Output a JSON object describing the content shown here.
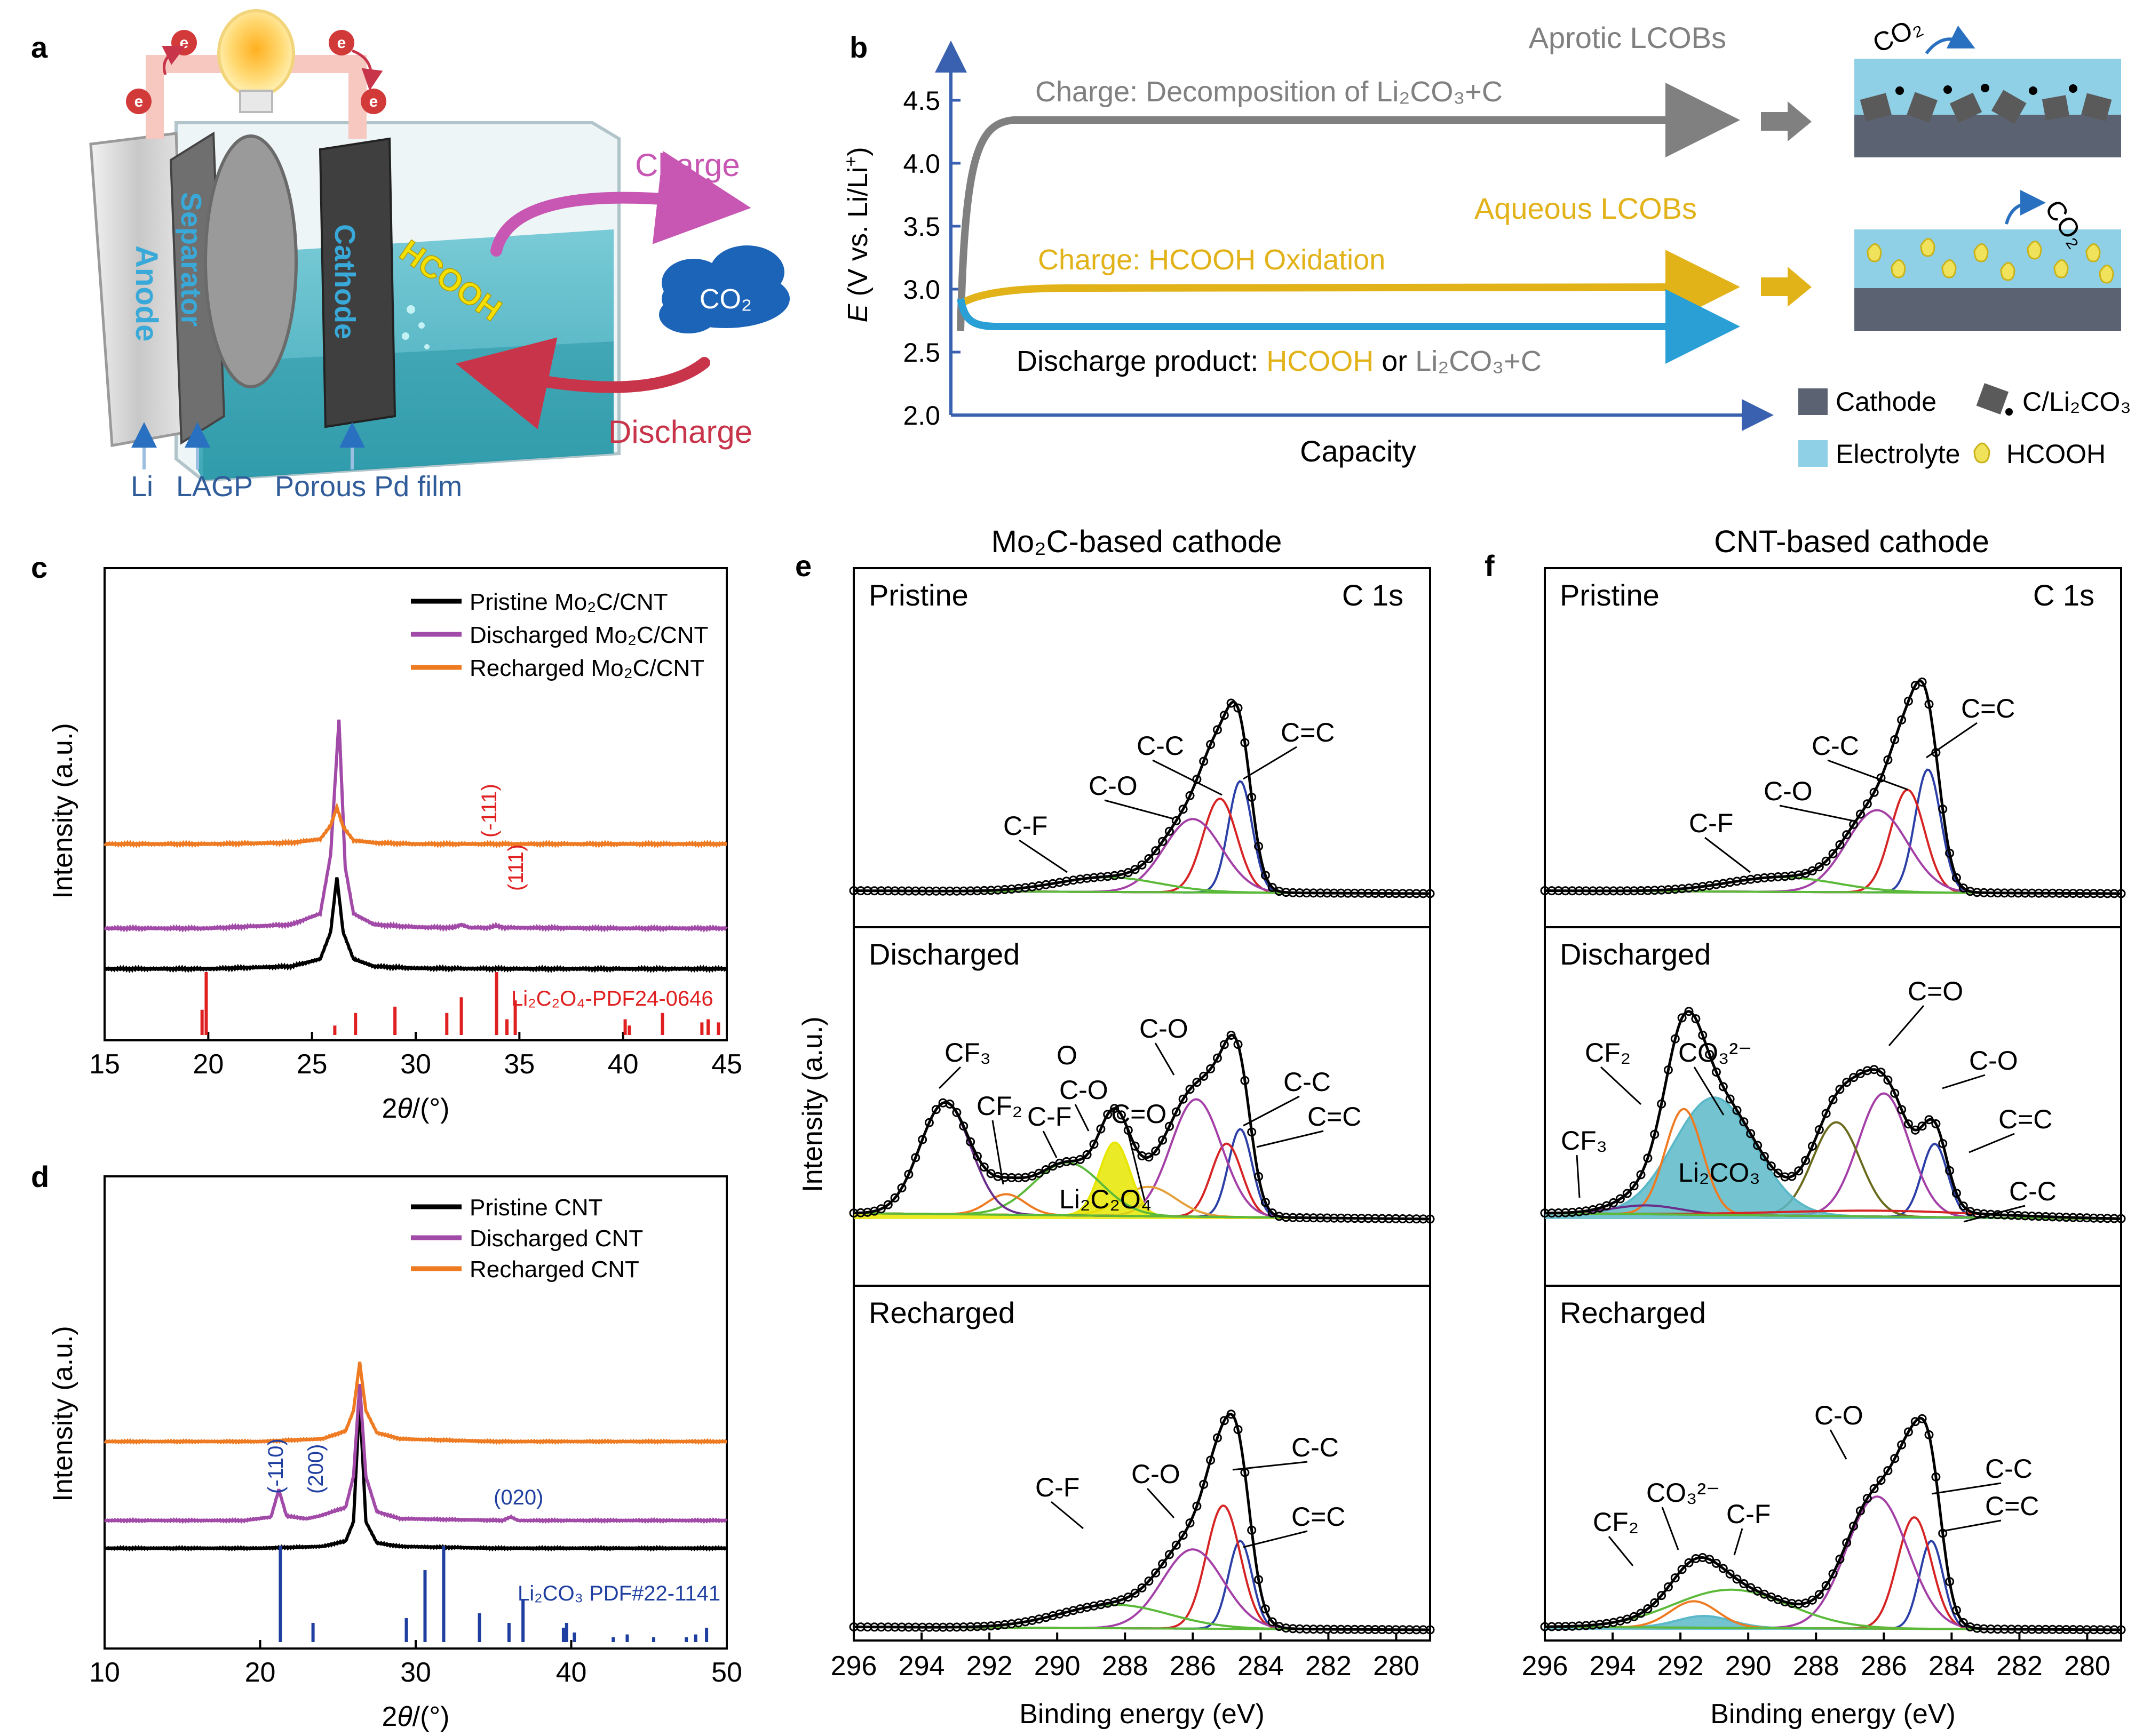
{
  "panel_letters": {
    "a": "a",
    "b": "b",
    "c": "c",
    "d": "d",
    "e": "e",
    "f": "f"
  },
  "panel_a": {
    "anode": "Anode",
    "separator": "Separator",
    "cathode": "Cathode",
    "hcooh": "HCOOH",
    "charge": "Charge",
    "discharge": "Discharge",
    "co2": "CO₂",
    "electron": "e",
    "labels_bottom": [
      "Li",
      "LAGP",
      "Porous Pd film"
    ]
  },
  "panel_b": {
    "title_aprotic": "Aprotic LCOBs",
    "title_aqueous": "Aqueous LCOBs",
    "charge_aprotic": "Charge: Decomposition of Li₂CO₃+C",
    "charge_aqueous": "Charge:  HCOOH Oxidation",
    "discharge_prefix": "Discharge product:",
    "discharge_hcooh": "HCOOH",
    "discharge_or": "or",
    "discharge_li2co3": "Li₂CO₃+C",
    "ylabel": "E (V vs. Li/Li⁺)",
    "xlabel": "Capacity",
    "yticks": [
      "2.0",
      "2.5",
      "3.0",
      "3.5",
      "4.0",
      "4.5"
    ],
    "co2": "CO₂",
    "legend": [
      "Cathode",
      "C/Li₂CO₃",
      "Electrolyte",
      "HCOOH"
    ],
    "colors": {
      "aprotic": "#808080",
      "aqueous": "#e2b219",
      "discharge": "#2a9fd6",
      "axis": "#3a61b0"
    }
  },
  "chart_data": [
    {
      "panel": "c",
      "type": "line",
      "xlabel": "2θ/(°)",
      "ylabel": "Intensity (a.u.)",
      "xlim": [
        15,
        45
      ],
      "xticks": [
        15,
        20,
        25,
        30,
        35,
        40,
        45
      ],
      "series": [
        {
          "name": "Pristine Mo₂C/CNT",
          "color": "#000000",
          "x": [
            15,
            20,
            24,
            25.4,
            25.9,
            26.2,
            26.5,
            27,
            28,
            30,
            35,
            40,
            45
          ],
          "y": [
            0.0,
            0.0,
            0.02,
            0.08,
            0.3,
            0.75,
            0.3,
            0.08,
            0.02,
            0.005,
            0.0,
            0.0,
            0.0
          ]
        },
        {
          "name": "Discharged Mo₂C/CNT",
          "color": "#a24aa8",
          "x": [
            15,
            20,
            24,
            25.4,
            25.9,
            26.3,
            26.6,
            27,
            28,
            30,
            31.8,
            32.2,
            32.6,
            33.5,
            33.9,
            34.3,
            40,
            45
          ],
          "y": [
            0.0,
            0.0,
            0.03,
            0.12,
            0.6,
            1.7,
            0.5,
            0.12,
            0.03,
            0.01,
            0.005,
            0.03,
            0.005,
            0.005,
            0.02,
            0.005,
            0.0,
            0.0
          ]
        },
        {
          "name": "Recharged Mo₂C/CNT",
          "color": "#ee7a22",
          "x": [
            15,
            20,
            24,
            25.4,
            25.9,
            26.2,
            26.5,
            27,
            28,
            30,
            35,
            40,
            45
          ],
          "y": [
            0.0,
            0.0,
            0.01,
            0.04,
            0.15,
            0.3,
            0.14,
            0.03,
            0.01,
            0.0,
            0.0,
            0.0,
            0.0
          ]
        }
      ],
      "reference": {
        "name": "Li₂C₂O₄-PDF24-0646",
        "color": "#e02020",
        "x": [
          19.7,
          19.9,
          26.1,
          27.1,
          29.0,
          31.5,
          32.2,
          33.9,
          34.4,
          34.8,
          40.1,
          40.3,
          41.9,
          43.8,
          44.1,
          44.6
        ],
        "y": [
          0.4,
          1.0,
          0.15,
          0.35,
          0.45,
          0.35,
          0.6,
          1.0,
          0.25,
          0.55,
          0.25,
          0.15,
          0.35,
          0.2,
          0.25,
          0.2
        ]
      },
      "annotations": [
        "(-111)",
        "(111)"
      ]
    },
    {
      "panel": "d",
      "type": "line",
      "xlabel": "2θ/(°)",
      "ylabel": "Intensity (a.u.)",
      "xlim": [
        10,
        50
      ],
      "xticks": [
        10,
        20,
        30,
        40,
        50
      ],
      "series": [
        {
          "name": "Pristine CNT",
          "color": "#000000",
          "x": [
            10,
            20,
            24,
            25.5,
            26,
            26.4,
            26.8,
            27.5,
            29,
            35,
            50
          ],
          "y": [
            0.0,
            0.0,
            0.02,
            0.08,
            0.3,
            1.7,
            0.3,
            0.06,
            0.02,
            0.0,
            0.0
          ]
        },
        {
          "name": "Discharged CNT",
          "color": "#a24aa8",
          "x": [
            10,
            19,
            20.7,
            21.2,
            21.7,
            23,
            23.8,
            25.5,
            26,
            26.4,
            26.8,
            27.5,
            29,
            35.6,
            36.1,
            36.6,
            50
          ],
          "y": [
            0.0,
            0.0,
            0.04,
            0.35,
            0.05,
            0.02,
            0.05,
            0.15,
            0.5,
            1.55,
            0.5,
            0.1,
            0.02,
            0.0,
            0.04,
            0.0,
            0.0
          ]
        },
        {
          "name": "Recharged CNT",
          "color": "#ee7a22",
          "x": [
            10,
            20,
            24,
            25.5,
            26,
            26.4,
            26.8,
            27.5,
            29,
            35,
            50
          ],
          "y": [
            0.0,
            0.0,
            0.03,
            0.12,
            0.35,
            0.9,
            0.35,
            0.1,
            0.03,
            0.0,
            0.0
          ]
        }
      ],
      "reference": {
        "name": "Li₂CO₃ PDF#22-1141",
        "color": "#1f3fa0",
        "x": [
          21.3,
          23.4,
          29.4,
          30.6,
          31.8,
          34.1,
          36.0,
          36.9,
          39.5,
          39.7,
          40.2,
          42.7,
          43.6,
          45.3,
          47.4,
          48.0,
          48.7
        ],
        "y": [
          1.0,
          0.2,
          0.25,
          0.75,
          1.0,
          0.3,
          0.2,
          0.45,
          0.15,
          0.2,
          0.1,
          0.05,
          0.08,
          0.05,
          0.05,
          0.08,
          0.15
        ]
      },
      "annotations": [
        "(-110)",
        "(200)",
        "(020)"
      ]
    },
    {
      "panel": "e",
      "type": "line",
      "title": "Mo₂C-based cathode",
      "xlabel": "Binding energy (eV)",
      "ylabel": "Intensity (a.u.)",
      "xlim": [
        296,
        279
      ],
      "xticks": [
        296,
        294,
        292,
        290,
        288,
        286,
        284,
        282,
        280
      ],
      "subplots": [
        {
          "label": "Pristine",
          "tag": "C 1s",
          "components": [
            {
              "name": "C=C",
              "center": 284.6,
              "height": 0.38,
              "width": 0.35,
              "color": "#2b3fa7"
            },
            {
              "name": "C-C",
              "center": 285.2,
              "height": 0.32,
              "width": 0.5,
              "color": "#d62424"
            },
            {
              "name": "C-O",
              "center": 286.0,
              "height": 0.25,
              "width": 0.85,
              "color": "#a33fa6"
            },
            {
              "name": "C-F",
              "center": 288.5,
              "height": 0.05,
              "width": 1.5,
              "color": "#5cba3a"
            }
          ]
        },
        {
          "label": "Discharged",
          "components": [
            {
              "name": "C=C",
              "center": 284.6,
              "height": 0.3,
              "width": 0.35,
              "color": "#2b3fa7"
            },
            {
              "name": "C-C",
              "center": 285.0,
              "height": 0.25,
              "width": 0.45,
              "color": "#d62424"
            },
            {
              "name": "C-O",
              "center": 285.9,
              "height": 0.4,
              "width": 0.75,
              "color": "#a33fa6"
            },
            {
              "name": "C=O",
              "center": 287.3,
              "height": 0.1,
              "width": 0.8,
              "color": "#e4a13a"
            },
            {
              "name": "Li₂C₂O₄",
              "center": 288.3,
              "height": 0.25,
              "width": 0.45,
              "color": "#e6e600"
            },
            {
              "name": "C-F",
              "center": 289.7,
              "height": 0.18,
              "width": 1.0,
              "color": "#5cba3a"
            },
            {
              "name": "CF₂",
              "center": 291.5,
              "height": 0.07,
              "width": 0.55,
              "color": "#ee7a22"
            },
            {
              "name": "CF₃",
              "center": 293.3,
              "height": 0.38,
              "width": 0.75,
              "color": "#6a2d8a"
            }
          ]
        },
        {
          "label": "Recharged",
          "components": [
            {
              "name": "C=C",
              "center": 284.6,
              "height": 0.3,
              "width": 0.35,
              "color": "#2b3fa7"
            },
            {
              "name": "C-C",
              "center": 285.1,
              "height": 0.42,
              "width": 0.5,
              "color": "#d62424"
            },
            {
              "name": "C-O",
              "center": 286.0,
              "height": 0.27,
              "width": 0.9,
              "color": "#a33fa6"
            },
            {
              "name": "C-F",
              "center": 288.3,
              "height": 0.08,
              "width": 1.6,
              "color": "#5cba3a"
            }
          ]
        }
      ]
    },
    {
      "panel": "f",
      "type": "line",
      "title": "CNT-based cathode",
      "xlabel": "Binding energy (eV)",
      "xlim": [
        296,
        279
      ],
      "xticks": [
        296,
        294,
        292,
        290,
        288,
        286,
        284,
        282,
        280
      ],
      "subplots": [
        {
          "label": "Pristine",
          "tag": "C 1s",
          "components": [
            {
              "name": "C=C",
              "center": 284.7,
              "height": 0.42,
              "width": 0.38,
              "color": "#2b3fa7"
            },
            {
              "name": "C-C",
              "center": 285.3,
              "height": 0.35,
              "width": 0.5,
              "color": "#d62424"
            },
            {
              "name": "C-O",
              "center": 286.2,
              "height": 0.28,
              "width": 0.9,
              "color": "#a33fa6"
            },
            {
              "name": "C-F",
              "center": 289.0,
              "height": 0.05,
              "width": 1.6,
              "color": "#5cba3a"
            }
          ]
        },
        {
          "label": "Discharged",
          "components": [
            {
              "name": "C=C",
              "center": 284.5,
              "height": 0.25,
              "width": 0.38,
              "color": "#2b3fa7"
            },
            {
              "name": "C-O",
              "center": 286.0,
              "height": 0.42,
              "width": 0.75,
              "color": "#a33fa6"
            },
            {
              "name": "C=O",
              "center": 287.4,
              "height": 0.32,
              "width": 0.7,
              "color": "#6b6b1e"
            },
            {
              "name": "CO₃²⁻",
              "center": 291.0,
              "height": 0.4,
              "width": 1.2,
              "color": "#5ab8c8"
            },
            {
              "name": "CF₂",
              "center": 291.9,
              "height": 0.36,
              "width": 0.55,
              "color": "#ee7a22"
            },
            {
              "name": "CF₃",
              "center": 293.0,
              "height": 0.03,
              "width": 1.0,
              "color": "#6a2d8a"
            },
            {
              "name": "C-C",
              "center": 286.0,
              "height": 0.02,
              "width": 3.0,
              "color": "#d62424"
            }
          ]
        },
        {
          "label": "Recharged",
          "components": [
            {
              "name": "C=C",
              "center": 284.6,
              "height": 0.3,
              "width": 0.35,
              "color": "#2b3fa7"
            },
            {
              "name": "C-C",
              "center": 285.1,
              "height": 0.38,
              "width": 0.5,
              "color": "#d62424"
            },
            {
              "name": "C-O",
              "center": 286.2,
              "height": 0.45,
              "width": 0.9,
              "color": "#a33fa6"
            },
            {
              "name": "C-F",
              "center": 290.5,
              "height": 0.13,
              "width": 1.7,
              "color": "#5cba3a"
            },
            {
              "name": "CO₃²⁻",
              "center": 291.3,
              "height": 0.04,
              "width": 0.8,
              "color": "#5ab8c8"
            },
            {
              "name": "CF₂",
              "center": 291.6,
              "height": 0.09,
              "width": 0.7,
              "color": "#ee7a22"
            }
          ]
        }
      ]
    }
  ],
  "panel_e_labels": {
    "pristine": [
      "C-F",
      "C-O",
      "C-C",
      "C=C"
    ],
    "discharged": [
      "CF₃",
      "CF₂",
      "C-F",
      "O",
      "C-O",
      "C=O",
      "Li₂C₂O₄",
      "C-O",
      "C-C",
      "C=C"
    ],
    "recharged": [
      "C-F",
      "C-O",
      "C-C",
      "C=C"
    ]
  },
  "panel_f_labels": {
    "pristine": [
      "C-F",
      "C-O",
      "C-C",
      "C=C"
    ],
    "discharged": [
      "CF₂",
      "CO₃²⁻",
      "CF₃",
      "Li₂CO₃",
      "C=O",
      "C-O",
      "C=C",
      "C-C"
    ],
    "recharged": [
      "CO₃²⁻",
      "CF₂",
      "C-F",
      "C-O",
      "C-C",
      "C=C"
    ]
  }
}
